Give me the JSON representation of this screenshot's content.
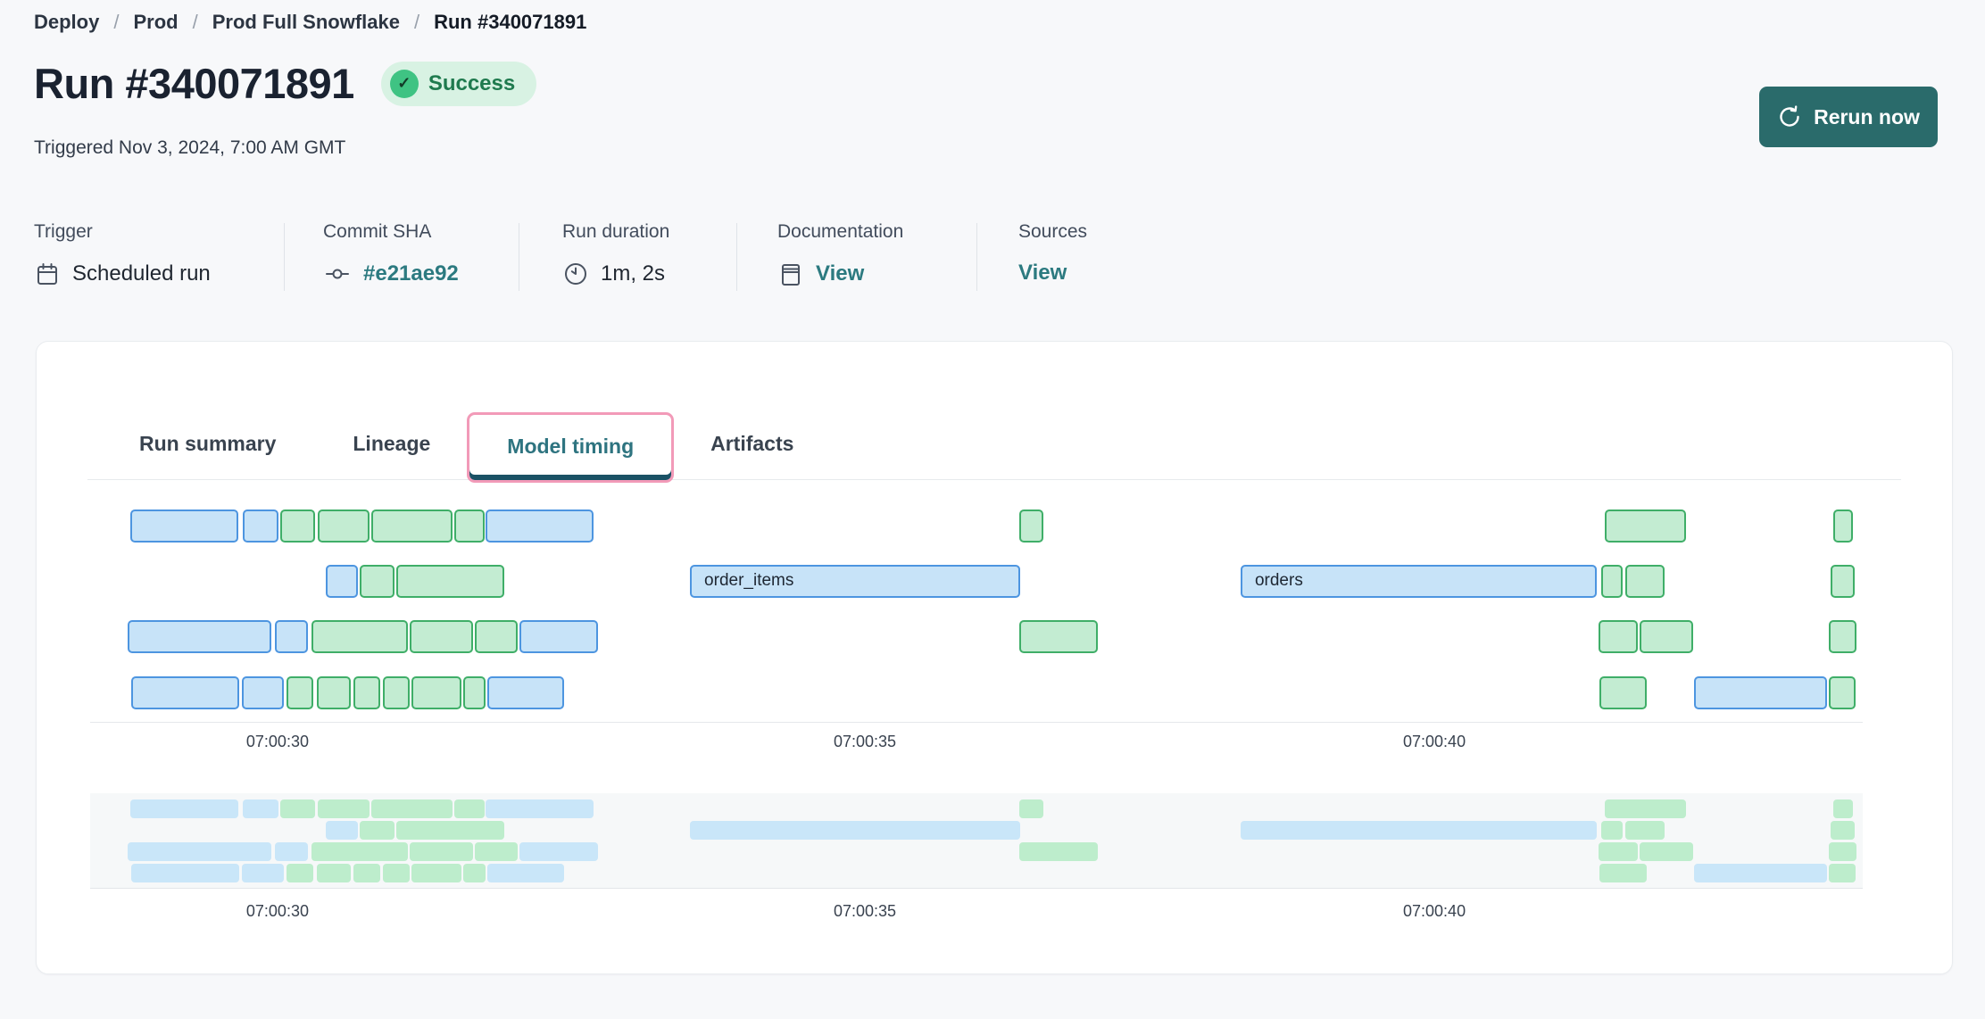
{
  "breadcrumb": {
    "items": [
      "Deploy",
      "Prod",
      "Prod Full Snowflake",
      "Run #340071891"
    ],
    "separator": "/"
  },
  "header": {
    "title": "Run #340071891",
    "status_label": "Success",
    "status_check": "✓",
    "triggered_text": "Triggered Nov 3, 2024, 7:00 AM GMT",
    "rerun_label": "Rerun now"
  },
  "meta": {
    "columns": [
      {
        "label": "Trigger",
        "value": "Scheduled run",
        "icon": "calendar-icon",
        "is_link": false
      },
      {
        "label": "Commit SHA",
        "value": "#e21ae92",
        "icon": "commit-icon",
        "is_link": true
      },
      {
        "label": "Run duration",
        "value": "1m, 2s",
        "icon": "clock-icon",
        "is_link": false
      },
      {
        "label": "Documentation",
        "value": "View",
        "icon": "doc-icon",
        "is_link": true
      },
      {
        "label": "Sources",
        "value": "View",
        "icon": null,
        "is_link": true
      }
    ]
  },
  "tabs": {
    "items": [
      "Run summary",
      "Lineage",
      "Model timing",
      "Artifacts"
    ],
    "active": "Model timing"
  },
  "colors": {
    "page_bg": "#f7f8fa",
    "accent_teal_button": "#2a6b6b",
    "link_teal": "#2c7a80",
    "tab_active_teal": "#2e7480",
    "focus_ring_pink": "#f29ab8",
    "success_bg": "#d8f2e3",
    "success_text": "#1f7a4e",
    "success_icon": "#3fc383",
    "bar_blue_fill": "#c7e3f8",
    "bar_blue_border": "#4d95e0",
    "bar_green_fill": "#c3ecd2",
    "bar_green_border": "#3fae68",
    "mini_blue": "#c9e6f9",
    "mini_green": "#bdedcc"
  },
  "chart_data": {
    "type": "gantt",
    "title": "Model timing",
    "x_ticks": [
      {
        "label": "07:00:30",
        "pos_pct": 8.76
      },
      {
        "label": "07:00:35",
        "pos_pct": 42.68
      },
      {
        "label": "07:00:40",
        "pos_pct": 75.57
      }
    ],
    "labeled_bars": [
      "order_items",
      "orders"
    ],
    "has_overview_minimap": true,
    "rows": [
      [
        {
          "color": "blue",
          "left_pct": 0.26,
          "width_pct": 6.24
        },
        {
          "color": "blue",
          "left_pct": 6.75,
          "width_pct": 2.06
        },
        {
          "color": "green",
          "left_pct": 8.92,
          "width_pct": 2.01
        },
        {
          "color": "green",
          "left_pct": 11.08,
          "width_pct": 2.99
        },
        {
          "color": "green",
          "left_pct": 14.18,
          "width_pct": 4.69
        },
        {
          "color": "green",
          "left_pct": 18.97,
          "width_pct": 1.75
        },
        {
          "color": "blue",
          "left_pct": 20.77,
          "width_pct": 6.24
        },
        {
          "color": "green",
          "left_pct": 51.6,
          "width_pct": 1.39
        },
        {
          "color": "green",
          "left_pct": 85.41,
          "width_pct": 4.69
        },
        {
          "color": "green",
          "left_pct": 98.61,
          "width_pct": 1.13
        }
      ],
      [
        {
          "color": "blue",
          "left_pct": 11.55,
          "width_pct": 1.86
        },
        {
          "color": "green",
          "left_pct": 13.51,
          "width_pct": 2.01
        },
        {
          "color": "green",
          "left_pct": 15.62,
          "width_pct": 6.24
        },
        {
          "color": "blue",
          "left_pct": 32.58,
          "width_pct": 19.07,
          "label": "order_items"
        },
        {
          "color": "blue",
          "left_pct": 64.38,
          "width_pct": 20.57,
          "label": "orders"
        },
        {
          "color": "green",
          "left_pct": 85.21,
          "width_pct": 1.24
        },
        {
          "color": "green",
          "left_pct": 86.6,
          "width_pct": 2.27
        },
        {
          "color": "green",
          "left_pct": 98.45,
          "width_pct": 1.39
        }
      ],
      [
        {
          "color": "blue",
          "left_pct": 0.1,
          "width_pct": 8.3
        },
        {
          "color": "blue",
          "left_pct": 8.61,
          "width_pct": 1.91
        },
        {
          "color": "green",
          "left_pct": 10.72,
          "width_pct": 5.57
        },
        {
          "color": "green",
          "left_pct": 16.39,
          "width_pct": 3.66
        },
        {
          "color": "green",
          "left_pct": 20.15,
          "width_pct": 2.47
        },
        {
          "color": "blue",
          "left_pct": 22.73,
          "width_pct": 4.54
        },
        {
          "color": "green",
          "left_pct": 51.6,
          "width_pct": 4.54
        },
        {
          "color": "green",
          "left_pct": 85.05,
          "width_pct": 2.27
        },
        {
          "color": "green",
          "left_pct": 87.42,
          "width_pct": 3.09
        },
        {
          "color": "green",
          "left_pct": 98.35,
          "width_pct": 1.6
        }
      ],
      [
        {
          "color": "blue",
          "left_pct": 0.31,
          "width_pct": 6.24
        },
        {
          "color": "blue",
          "left_pct": 6.7,
          "width_pct": 2.42
        },
        {
          "color": "green",
          "left_pct": 9.28,
          "width_pct": 1.55
        },
        {
          "color": "green",
          "left_pct": 11.03,
          "width_pct": 1.96
        },
        {
          "color": "green",
          "left_pct": 13.14,
          "width_pct": 1.55
        },
        {
          "color": "green",
          "left_pct": 14.85,
          "width_pct": 1.55
        },
        {
          "color": "green",
          "left_pct": 16.49,
          "width_pct": 2.89
        },
        {
          "color": "green",
          "left_pct": 19.48,
          "width_pct": 1.29
        },
        {
          "color": "blue",
          "left_pct": 20.88,
          "width_pct": 4.43
        },
        {
          "color": "green",
          "left_pct": 85.1,
          "width_pct": 2.73
        },
        {
          "color": "blue",
          "left_pct": 90.57,
          "width_pct": 7.68
        },
        {
          "color": "green",
          "left_pct": 98.35,
          "width_pct": 1.55
        }
      ]
    ]
  }
}
